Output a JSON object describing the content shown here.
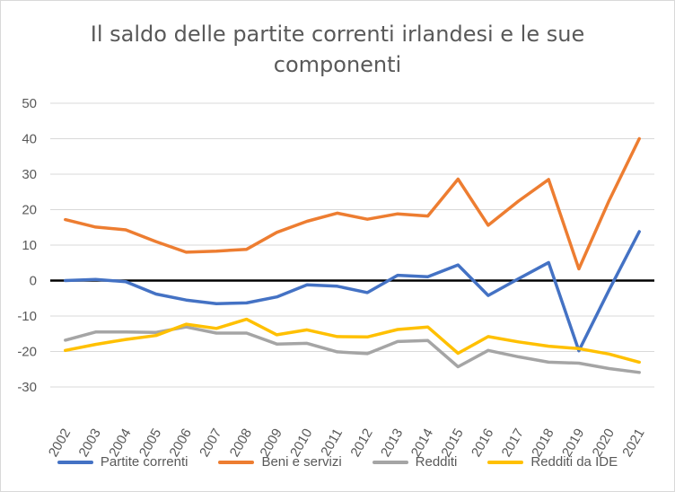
{
  "chart_data": {
    "type": "line",
    "title_lines": [
      "Il saldo delle partite correnti irlandesi e le sue",
      "componenti"
    ],
    "xlabel": "",
    "ylabel": "",
    "ylim": [
      -30,
      50
    ],
    "yticks": [
      50,
      40,
      30,
      20,
      10,
      0,
      -10,
      -20,
      -30
    ],
    "categories": [
      "2002",
      "2003",
      "2004",
      "2005",
      "2006",
      "2007",
      "2008",
      "2009",
      "2010",
      "2011",
      "2012",
      "2013",
      "2014",
      "2015",
      "2016",
      "2017",
      "2018",
      "2019",
      "2020",
      "2021"
    ],
    "legend_position": "bottom",
    "grid": true,
    "zero_line": true,
    "series": [
      {
        "name": "Partite correnti",
        "color": "#4472C4",
        "values": [
          0,
          0.3,
          -0.3,
          -3.8,
          -5.5,
          -6.5,
          -6.3,
          -4.6,
          -1.2,
          -1.6,
          -3.4,
          1.5,
          1.1,
          4.4,
          -4.2,
          0.5,
          5.1,
          -19.8,
          -2.7,
          13.8
        ]
      },
      {
        "name": "Beni e servizi",
        "color": "#ED7D31",
        "values": [
          17.2,
          15.1,
          14.3,
          11.0,
          8.0,
          8.3,
          8.8,
          13.6,
          16.7,
          19.0,
          17.3,
          18.8,
          18.2,
          28.6,
          15.6,
          22.4,
          28.5,
          3.3,
          22.5,
          40.0
        ]
      },
      {
        "name": "Redditi",
        "color": "#A5A5A5",
        "values": [
          -16.8,
          -14.5,
          -14.5,
          -14.6,
          -13.1,
          -14.8,
          -14.8,
          -17.9,
          -17.7,
          -20.1,
          -20.6,
          -17.2,
          -16.9,
          -24.3,
          -19.7,
          -21.5,
          -23.0,
          -23.3,
          -24.8,
          -25.9
        ]
      },
      {
        "name": "Redditi da IDE",
        "color": "#FFC000",
        "values": [
          -19.7,
          -18.0,
          -16.6,
          -15.5,
          -12.3,
          -13.5,
          -10.9,
          -15.3,
          -13.9,
          -15.8,
          -15.9,
          -13.8,
          -13.1,
          -20.5,
          -15.8,
          -17.3,
          -18.5,
          -19.2,
          -20.7,
          -23.0
        ]
      }
    ]
  }
}
